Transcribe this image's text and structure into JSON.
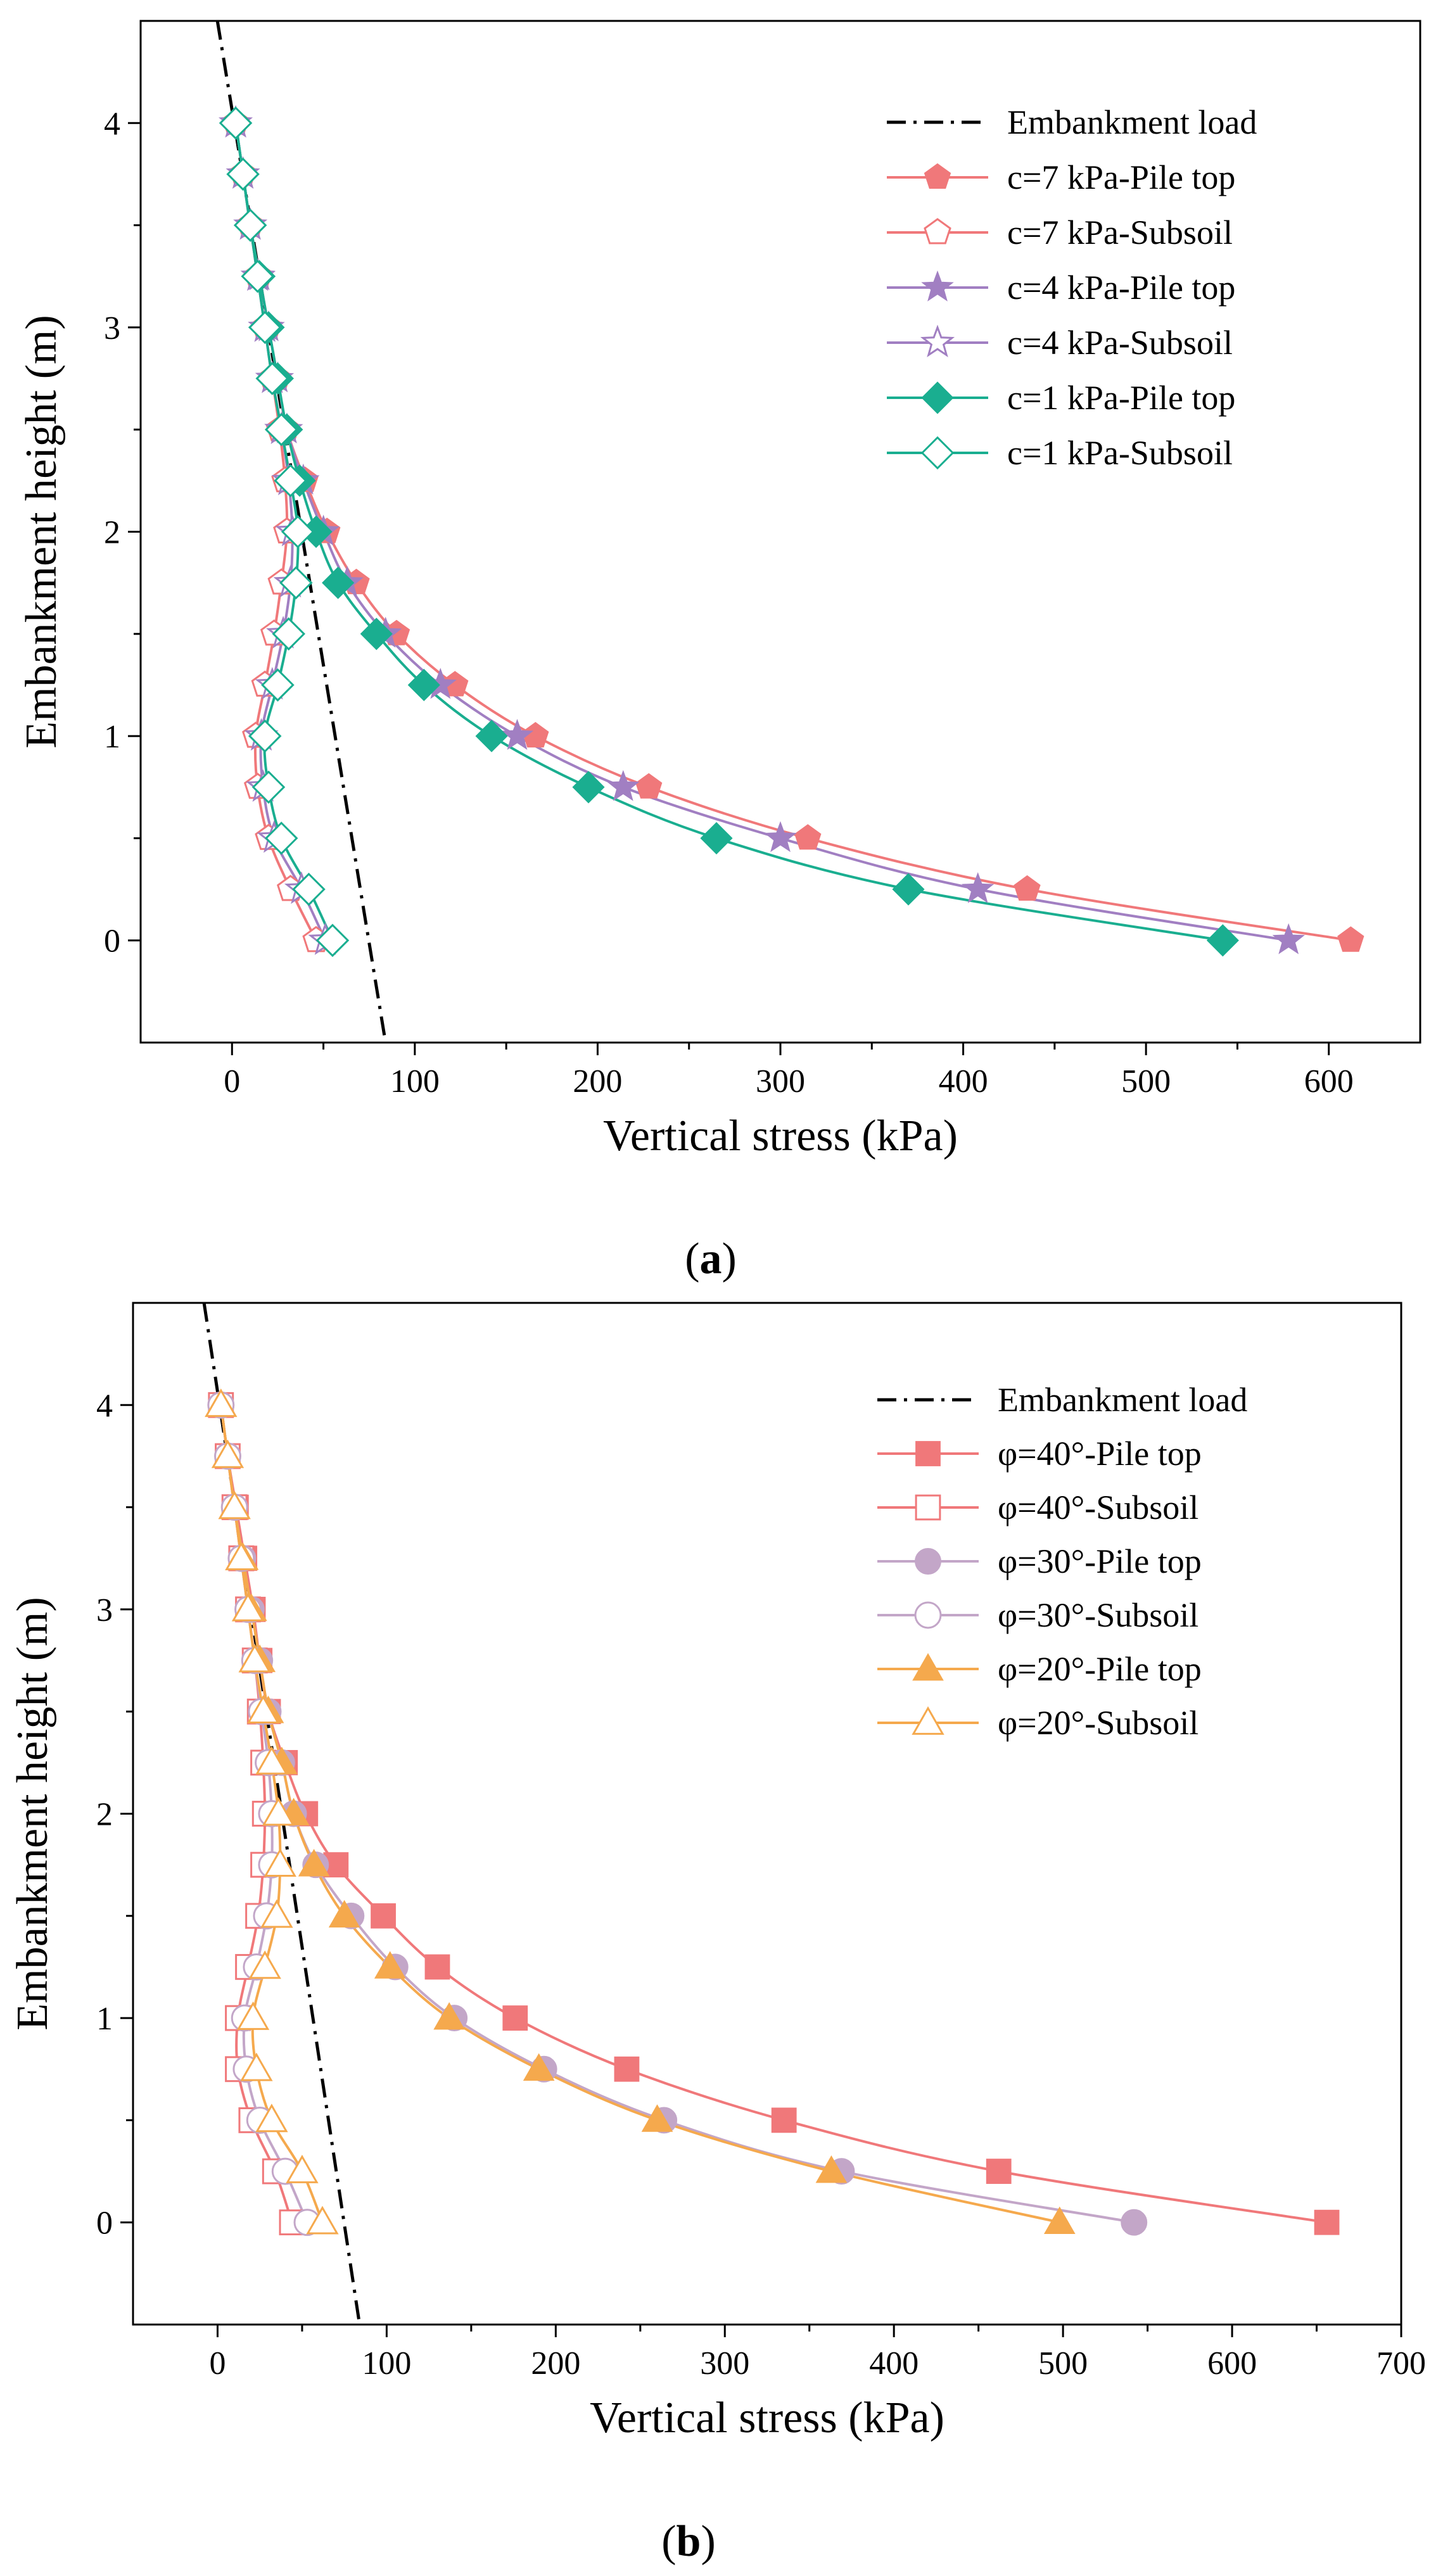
{
  "chart_data": [
    {
      "type": "line",
      "panel_label": "a",
      "xlabel": "Vertical stress (kPa)",
      "ylabel": "Embankment height (m)",
      "xlim": [
        -50,
        650
      ],
      "ylim": [
        -0.5,
        4.5
      ],
      "xticks": [
        0,
        100,
        200,
        300,
        400,
        500,
        600
      ],
      "yticks": [
        0,
        1,
        2,
        3,
        4
      ],
      "legend_position": "top-right",
      "series": [
        {
          "name": "Embankment load",
          "color": "#000000",
          "dash": "dash-dot",
          "marker": "none",
          "filled": false,
          "points": [
            [
              -8,
              4.5
            ],
            [
              84,
              -0.5
            ]
          ]
        },
        {
          "name": "c=7 kPa-Pile top",
          "color": "#f0787a",
          "marker": "pentagon",
          "filled": true,
          "points": [
            [
              2,
              4.0
            ],
            [
              6,
              3.75
            ],
            [
              10,
              3.5
            ],
            [
              15,
              3.25
            ],
            [
              20,
              3.0
            ],
            [
              25,
              2.75
            ],
            [
              30,
              2.5
            ],
            [
              40,
              2.25
            ],
            [
              52,
              2.0
            ],
            [
              68,
              1.75
            ],
            [
              90,
              1.5
            ],
            [
              122,
              1.25
            ],
            [
              166,
              1.0
            ],
            [
              228,
              0.75
            ],
            [
              315,
              0.5
            ],
            [
              435,
              0.25
            ],
            [
              612,
              0.0
            ]
          ]
        },
        {
          "name": "c=7 kPa-Subsoil",
          "color": "#f0787a",
          "marker": "pentagon",
          "filled": false,
          "points": [
            [
              2,
              4.0
            ],
            [
              6,
              3.75
            ],
            [
              10,
              3.5
            ],
            [
              14,
              3.25
            ],
            [
              18,
              3.0
            ],
            [
              22,
              2.75
            ],
            [
              26,
              2.5
            ],
            [
              29,
              2.25
            ],
            [
              30,
              2.0
            ],
            [
              27,
              1.75
            ],
            [
              23,
              1.5
            ],
            [
              18,
              1.25
            ],
            [
              13,
              1.0
            ],
            [
              14,
              0.75
            ],
            [
              20,
              0.5
            ],
            [
              32,
              0.25
            ],
            [
              46,
              0.0
            ]
          ]
        },
        {
          "name": "c=4 kPa-Pile top",
          "color": "#a17fc2",
          "marker": "star",
          "filled": true,
          "points": [
            [
              2,
              4.0
            ],
            [
              6,
              3.75
            ],
            [
              10,
              3.5
            ],
            [
              15,
              3.25
            ],
            [
              20,
              3.0
            ],
            [
              25,
              2.75
            ],
            [
              30,
              2.5
            ],
            [
              39,
              2.25
            ],
            [
              50,
              2.0
            ],
            [
              63,
              1.75
            ],
            [
              84,
              1.5
            ],
            [
              114,
              1.25
            ],
            [
              156,
              1.0
            ],
            [
              214,
              0.75
            ],
            [
              300,
              0.5
            ],
            [
              408,
              0.25
            ],
            [
              578,
              0.0
            ]
          ]
        },
        {
          "name": "c=4 kPa-Subsoil",
          "color": "#a17fc2",
          "marker": "star",
          "filled": false,
          "points": [
            [
              2,
              4.0
            ],
            [
              6,
              3.75
            ],
            [
              10,
              3.5
            ],
            [
              14,
              3.25
            ],
            [
              18,
              3.0
            ],
            [
              22,
              2.75
            ],
            [
              27,
              2.5
            ],
            [
              31,
              2.25
            ],
            [
              33,
              2.0
            ],
            [
              32,
              1.75
            ],
            [
              28,
              1.5
            ],
            [
              22,
              1.25
            ],
            [
              16,
              1.0
            ],
            [
              17,
              0.75
            ],
            [
              23,
              0.5
            ],
            [
              38,
              0.25
            ],
            [
              51,
              0.0
            ]
          ]
        },
        {
          "name": "c=1 kPa-Pile top",
          "color": "#1aae90",
          "marker": "diamond",
          "filled": true,
          "points": [
            [
              2,
              4.0
            ],
            [
              6,
              3.75
            ],
            [
              10,
              3.5
            ],
            [
              15,
              3.25
            ],
            [
              20,
              3.0
            ],
            [
              25,
              2.75
            ],
            [
              30,
              2.5
            ],
            [
              37,
              2.25
            ],
            [
              46,
              2.0
            ],
            [
              58,
              1.75
            ],
            [
              79,
              1.5
            ],
            [
              105,
              1.25
            ],
            [
              142,
              1.0
            ],
            [
              195,
              0.75
            ],
            [
              265,
              0.5
            ],
            [
              370,
              0.25
            ],
            [
              542,
              0.0
            ]
          ]
        },
        {
          "name": "c=1 kPa-Subsoil",
          "color": "#1aae90",
          "marker": "diamond",
          "filled": false,
          "points": [
            [
              2,
              4.0
            ],
            [
              6,
              3.75
            ],
            [
              10,
              3.5
            ],
            [
              14,
              3.25
            ],
            [
              18,
              3.0
            ],
            [
              22,
              2.75
            ],
            [
              27,
              2.5
            ],
            [
              32,
              2.25
            ],
            [
              36,
              2.0
            ],
            [
              35,
              1.75
            ],
            [
              31,
              1.5
            ],
            [
              25,
              1.25
            ],
            [
              18,
              1.0
            ],
            [
              20,
              0.75
            ],
            [
              27,
              0.5
            ],
            [
              42,
              0.25
            ],
            [
              55,
              0.0
            ]
          ]
        }
      ]
    },
    {
      "type": "line",
      "panel_label": "b",
      "xlabel": "Vertical stress (kPa)",
      "ylabel": "Embankment height (m)",
      "xlim": [
        -50,
        700
      ],
      "ylim": [
        -0.5,
        4.5
      ],
      "xticks": [
        0,
        100,
        200,
        300,
        400,
        500,
        600,
        700
      ],
      "yticks": [
        0,
        1,
        2,
        3,
        4
      ],
      "legend_position": "top-right",
      "series": [
        {
          "name": "Embankment load",
          "color": "#000000",
          "dash": "dash-dot",
          "marker": "none",
          "filled": false,
          "points": [
            [
              -8,
              4.5
            ],
            [
              84,
              -0.5
            ]
          ]
        },
        {
          "name": "φ=40°-Pile top",
          "color": "#f0787a",
          "marker": "square",
          "filled": true,
          "points": [
            [
              2,
              4.0
            ],
            [
              6,
              3.75
            ],
            [
              11,
              3.5
            ],
            [
              16,
              3.25
            ],
            [
              21,
              3.0
            ],
            [
              25,
              2.75
            ],
            [
              30,
              2.5
            ],
            [
              40,
              2.25
            ],
            [
              52,
              2.0
            ],
            [
              70,
              1.75
            ],
            [
              98,
              1.5
            ],
            [
              130,
              1.25
            ],
            [
              176,
              1.0
            ],
            [
              242,
              0.75
            ],
            [
              335,
              0.5
            ],
            [
              462,
              0.25
            ],
            [
              656,
              0.0
            ]
          ]
        },
        {
          "name": "φ=40°-Subsoil",
          "color": "#f0787a",
          "marker": "square",
          "filled": false,
          "points": [
            [
              2,
              4.0
            ],
            [
              6,
              3.75
            ],
            [
              10,
              3.5
            ],
            [
              14,
              3.25
            ],
            [
              18,
              3.0
            ],
            [
              22,
              2.75
            ],
            [
              25,
              2.5
            ],
            [
              27,
              2.25
            ],
            [
              28,
              2.0
            ],
            [
              27,
              1.75
            ],
            [
              24,
              1.5
            ],
            [
              18,
              1.25
            ],
            [
              12,
              1.0
            ],
            [
              12,
              0.75
            ],
            [
              20,
              0.5
            ],
            [
              34,
              0.25
            ],
            [
              44,
              0.0
            ]
          ]
        },
        {
          "name": "φ=30°-Pile top",
          "color": "#c3a6c8",
          "marker": "circle",
          "filled": true,
          "points": [
            [
              2,
              4.0
            ],
            [
              6,
              3.75
            ],
            [
              10,
              3.5
            ],
            [
              15,
              3.25
            ],
            [
              20,
              3.0
            ],
            [
              25,
              2.75
            ],
            [
              30,
              2.5
            ],
            [
              38,
              2.25
            ],
            [
              45,
              2.0
            ],
            [
              58,
              1.75
            ],
            [
              79,
              1.5
            ],
            [
              105,
              1.25
            ],
            [
              140,
              1.0
            ],
            [
              193,
              0.75
            ],
            [
              264,
              0.5
            ],
            [
              369,
              0.25
            ],
            [
              542,
              0.0
            ]
          ]
        },
        {
          "name": "φ=30°-Subsoil",
          "color": "#c3a6c8",
          "marker": "circle",
          "filled": false,
          "points": [
            [
              2,
              4.0
            ],
            [
              6,
              3.75
            ],
            [
              10,
              3.5
            ],
            [
              14,
              3.25
            ],
            [
              18,
              3.0
            ],
            [
              22,
              2.75
            ],
            [
              26,
              2.5
            ],
            [
              30,
              2.25
            ],
            [
              32,
              2.0
            ],
            [
              32,
              1.75
            ],
            [
              29,
              1.5
            ],
            [
              23,
              1.25
            ],
            [
              16,
              1.0
            ],
            [
              17,
              0.75
            ],
            [
              25,
              0.5
            ],
            [
              40,
              0.25
            ],
            [
              53,
              0.0
            ]
          ]
        },
        {
          "name": "φ=20°-Pile top",
          "color": "#f5a94d",
          "marker": "triangle",
          "filled": true,
          "points": [
            [
              2,
              4.0
            ],
            [
              6,
              3.75
            ],
            [
              10,
              3.5
            ],
            [
              15,
              3.25
            ],
            [
              20,
              3.0
            ],
            [
              25,
              2.75
            ],
            [
              30,
              2.5
            ],
            [
              38,
              2.25
            ],
            [
              45,
              2.0
            ],
            [
              57,
              1.75
            ],
            [
              75,
              1.5
            ],
            [
              102,
              1.25
            ],
            [
              137,
              1.0
            ],
            [
              190,
              0.75
            ],
            [
              260,
              0.5
            ],
            [
              363,
              0.25
            ],
            [
              498,
              0.0
            ]
          ]
        },
        {
          "name": "φ=20°-Subsoil",
          "color": "#f5a94d",
          "marker": "triangle",
          "filled": false,
          "points": [
            [
              2,
              4.0
            ],
            [
              6,
              3.75
            ],
            [
              10,
              3.5
            ],
            [
              14,
              3.25
            ],
            [
              18,
              3.0
            ],
            [
              22,
              2.75
            ],
            [
              27,
              2.5
            ],
            [
              32,
              2.25
            ],
            [
              36,
              2.0
            ],
            [
              37,
              1.75
            ],
            [
              35,
              1.5
            ],
            [
              28,
              1.25
            ],
            [
              21,
              1.0
            ],
            [
              23,
              0.75
            ],
            [
              32,
              0.5
            ],
            [
              50,
              0.25
            ],
            [
              62,
              0.0
            ]
          ]
        }
      ]
    }
  ]
}
